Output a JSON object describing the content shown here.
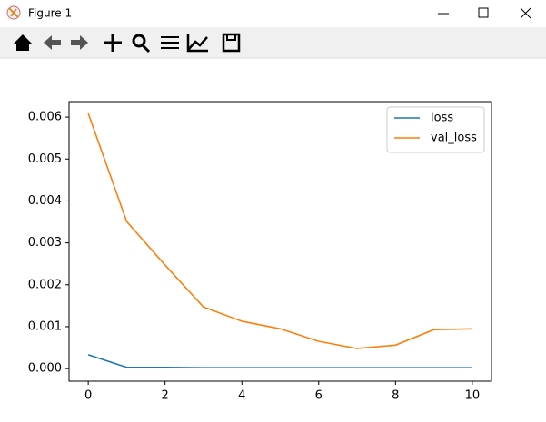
{
  "window": {
    "title": "Figure 1"
  },
  "chart_data": {
    "type": "line",
    "x": [
      0,
      1,
      2,
      3,
      4,
      5,
      6,
      7,
      8,
      9,
      10
    ],
    "series": [
      {
        "name": "loss",
        "color": "#1f77b4",
        "values": [
          0.00033,
          3e-05,
          3e-05,
          2e-05,
          2e-05,
          2e-05,
          2e-05,
          2e-05,
          2e-05,
          2e-05,
          2e-05
        ]
      },
      {
        "name": "val_loss",
        "color": "#ff7f0e",
        "values": [
          0.00609,
          0.00351,
          0.00247,
          0.00147,
          0.00113,
          0.00095,
          0.00065,
          0.00048,
          0.00056,
          0.00093,
          0.00095
        ]
      }
    ],
    "xlim": [
      -0.5,
      10.5
    ],
    "xticks": [
      0,
      2,
      4,
      6,
      8,
      10
    ],
    "ylim": [
      -0.0003,
      0.00637
    ],
    "yticks": [
      {
        "value": 0,
        "label": "0.000"
      },
      {
        "value": 0.001,
        "label": "0.001"
      },
      {
        "value": 0.002,
        "label": "0.002"
      },
      {
        "value": 0.003,
        "label": "0.003"
      },
      {
        "value": 0.004,
        "label": "0.004"
      },
      {
        "value": 0.005,
        "label": "0.005"
      },
      {
        "value": 0.006,
        "label": "0.006"
      }
    ],
    "legend": "upper right"
  }
}
